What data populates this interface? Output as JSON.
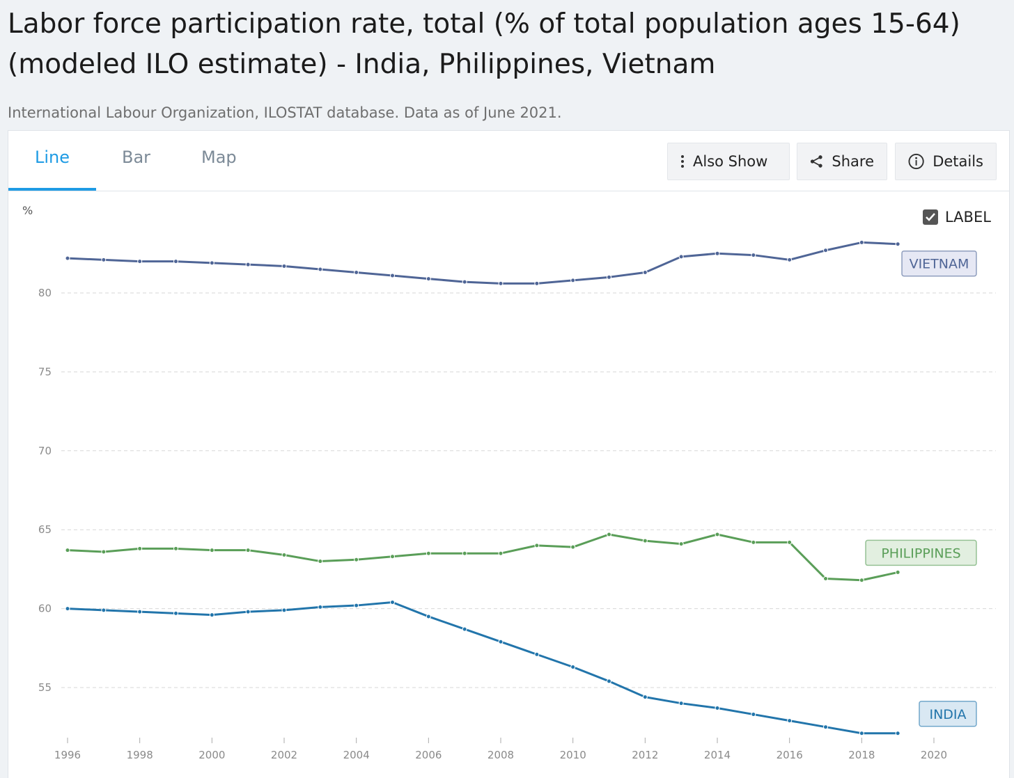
{
  "header": {
    "title": "Labor force participation rate, total (% of total population ages 15-64) (modeled ILO estimate) - India, Philippines, Vietnam",
    "source": "International Labour Organization, ILOSTAT database. Data as of June 2021."
  },
  "tabs": [
    {
      "label": "Line",
      "active": true
    },
    {
      "label": "Bar",
      "active": false
    },
    {
      "label": "Map",
      "active": false
    }
  ],
  "actions": {
    "also_show": "Also Show",
    "share": "Share",
    "details": "Details"
  },
  "label_toggle": {
    "label": "LABEL",
    "checked": true
  },
  "colors": {
    "vietnam": "#4f6596",
    "philippines": "#5a9e58",
    "india": "#2275ab",
    "accent": "#1e9be4"
  },
  "chart_data": {
    "type": "line",
    "ylabel": "%",
    "ylim": [
      51.5,
      85
    ],
    "xlim": [
      1996,
      2021
    ],
    "yticks": [
      55,
      60,
      65,
      70,
      75,
      80
    ],
    "xticks": [
      1996,
      1998,
      2000,
      2002,
      2004,
      2006,
      2008,
      2010,
      2012,
      2014,
      2016,
      2018,
      2020
    ],
    "grid": true,
    "x": [
      1996,
      1997,
      1998,
      1999,
      2000,
      2001,
      2002,
      2003,
      2004,
      2005,
      2006,
      2007,
      2008,
      2009,
      2010,
      2011,
      2012,
      2013,
      2014,
      2015,
      2016,
      2017,
      2018,
      2019
    ],
    "series": [
      {
        "name": "VIETNAM",
        "color": "#4f6596",
        "label_fill": "#e6e8f4",
        "values": [
          82.2,
          82.1,
          82.0,
          82.0,
          81.9,
          81.8,
          81.7,
          81.5,
          81.3,
          81.1,
          80.9,
          80.7,
          80.6,
          80.6,
          80.8,
          81.0,
          81.3,
          82.3,
          82.5,
          82.4,
          82.1,
          82.7,
          83.2,
          83.1
        ]
      },
      {
        "name": "PHILIPPINES",
        "color": "#5a9e58",
        "label_fill": "#e2efe0",
        "values": [
          63.7,
          63.6,
          63.8,
          63.8,
          63.7,
          63.7,
          63.4,
          63.0,
          63.1,
          63.3,
          63.5,
          63.5,
          63.5,
          64.0,
          63.9,
          64.7,
          64.3,
          64.1,
          64.7,
          64.2,
          64.2,
          61.9,
          61.8,
          62.3
        ]
      },
      {
        "name": "INDIA",
        "color": "#2275ab",
        "label_fill": "#d9e8f3",
        "values": [
          60.0,
          59.9,
          59.8,
          59.7,
          59.6,
          59.8,
          59.9,
          60.1,
          60.2,
          60.4,
          59.5,
          58.7,
          57.9,
          57.1,
          56.3,
          55.4,
          54.4,
          54.0,
          53.7,
          53.3,
          52.9,
          52.5,
          52.1,
          52.1
        ]
      }
    ]
  }
}
